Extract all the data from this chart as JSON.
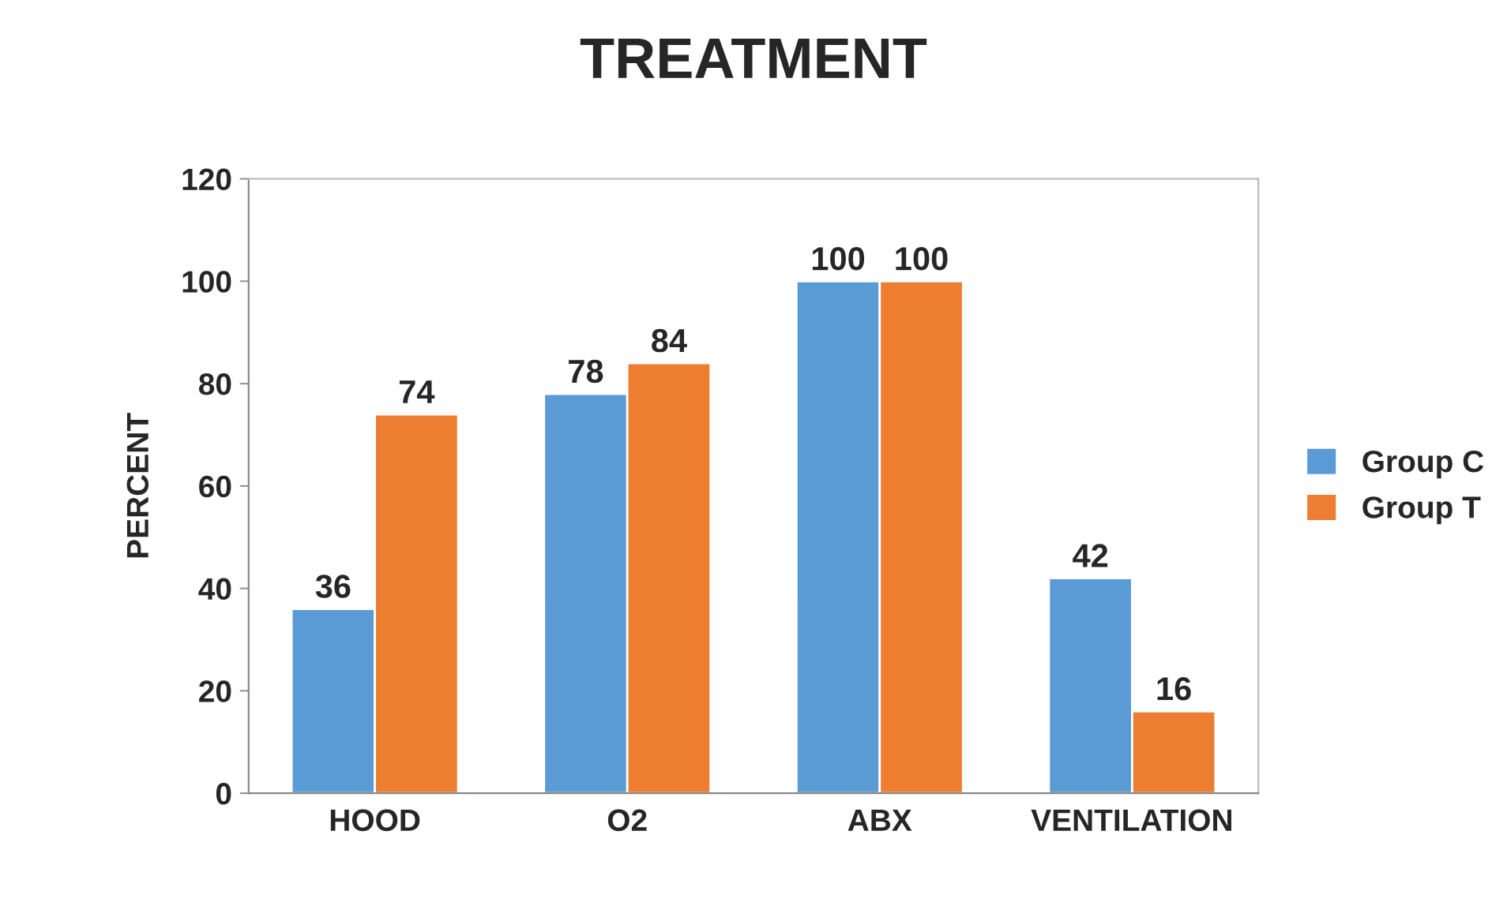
{
  "chart_data": {
    "type": "bar",
    "title": "TREATMENT",
    "ylabel": "PERCENT",
    "categories": [
      "HOOD",
      "O2",
      "ABX",
      "VENTILATION"
    ],
    "series": [
      {
        "name": "Group C",
        "color": "#5b9bd5",
        "values": [
          36,
          78,
          100,
          42
        ]
      },
      {
        "name": "Group T",
        "color": "#ed7d31",
        "values": [
          74,
          84,
          100,
          16
        ]
      }
    ],
    "ylim": [
      0,
      120
    ],
    "yticks": [
      0,
      20,
      40,
      60,
      80,
      100,
      120
    ],
    "grid": false,
    "legend": "right",
    "data_labels": true
  }
}
